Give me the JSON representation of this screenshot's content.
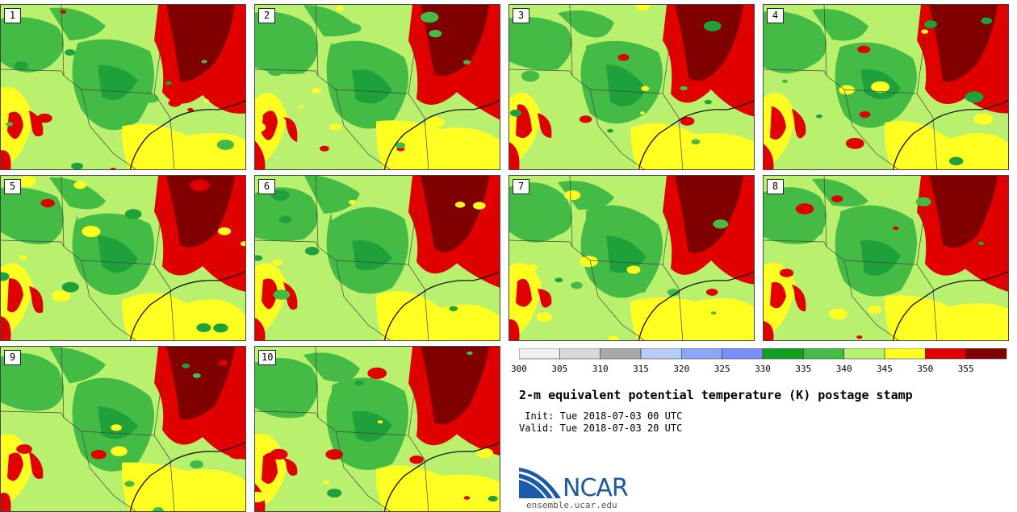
{
  "panels": [
    {
      "label": "1"
    },
    {
      "label": "2"
    },
    {
      "label": "3"
    },
    {
      "label": "4"
    },
    {
      "label": "5"
    },
    {
      "label": "6"
    },
    {
      "label": "7"
    },
    {
      "label": "8"
    },
    {
      "label": "9"
    },
    {
      "label": "10"
    }
  ],
  "colorbar": {
    "ticks": [
      "300",
      "305",
      "310",
      "315",
      "320",
      "325",
      "330",
      "335",
      "340",
      "345",
      "350",
      "355"
    ],
    "colors": [
      "#f0f0f0",
      "#d8d8d8",
      "#a8a8a8",
      "#b8ccf8",
      "#8aa6f8",
      "#7b8ef5",
      "#10a020",
      "#44bb44",
      "#b9f06e",
      "#ffff22",
      "#e00000",
      "#800000"
    ]
  },
  "title": "2-m equivalent potential temperature (K) postage stamp",
  "init_text": " Init: Tue 2018-07-03 00 UTC",
  "valid_text": "Valid: Tue 2018-07-03 20 UTC",
  "logo": {
    "text": "NCAR",
    "site": "ensemble.ucar.edu"
  },
  "map_colors": {
    "base": "#b9f06e",
    "green": "#44bb44",
    "dkgreen": "#1ea03a",
    "yellow": "#ffff22",
    "red": "#e00000",
    "dkred": "#800000"
  }
}
